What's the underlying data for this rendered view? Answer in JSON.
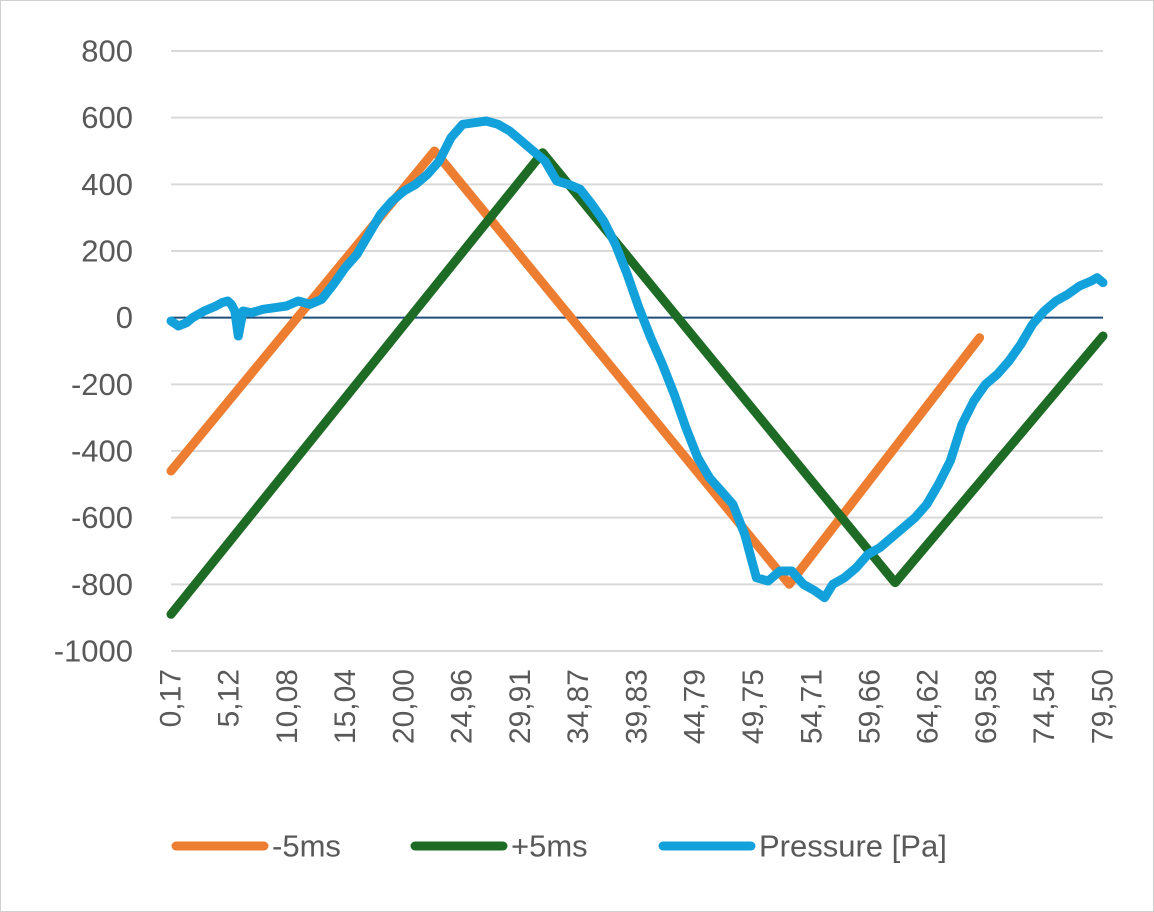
{
  "chart_data": {
    "type": "line",
    "title": "",
    "xlabel": "",
    "ylabel": "",
    "x_tick_labels": [
      "0,17",
      "5,12",
      "10,08",
      "15,04",
      "20,00",
      "24,96",
      "29,91",
      "34,87",
      "39,83",
      "44,79",
      "49,75",
      "54,71",
      "59,66",
      "64,62",
      "69,58",
      "74,54",
      "79,50"
    ],
    "x_ticks": [
      0.17,
      5.12,
      10.08,
      15.04,
      20.0,
      24.96,
      29.91,
      34.87,
      39.83,
      44.79,
      49.75,
      54.71,
      59.66,
      64.62,
      69.58,
      74.54,
      79.5
    ],
    "xlim": [
      0.17,
      79.5
    ],
    "ylim": [
      -1000,
      800
    ],
    "y_ticks": [
      800,
      600,
      400,
      200,
      0,
      -200,
      -400,
      -600,
      -800,
      -1000
    ],
    "y_tick_labels": [
      "800",
      "600",
      "400",
      "200",
      "0",
      "-200",
      "-400",
      "-600",
      "-800",
      "-1000"
    ],
    "grid": true,
    "legend_position": "bottom",
    "series": [
      {
        "name": "-5ms",
        "color": "#ed7d31",
        "points": [
          [
            0.17,
            -460
          ],
          [
            22.6,
            500
          ],
          [
            52.8,
            -800
          ],
          [
            69.0,
            -60
          ]
        ]
      },
      {
        "name": "+5ms",
        "color": "#1e6b25",
        "points": [
          [
            0.17,
            -890
          ],
          [
            31.8,
            495
          ],
          [
            61.8,
            -795
          ],
          [
            79.5,
            -55
          ]
        ]
      },
      {
        "name": "Pressure [Pa]",
        "color": "#13a1dc",
        "points": [
          [
            0.17,
            -10
          ],
          [
            0.8,
            -25
          ],
          [
            1.5,
            -15
          ],
          [
            2.0,
            0
          ],
          [
            3.0,
            20
          ],
          [
            4.0,
            35
          ],
          [
            4.5,
            45
          ],
          [
            5.0,
            50
          ],
          [
            5.3,
            40
          ],
          [
            5.6,
            20
          ],
          [
            5.9,
            -55
          ],
          [
            6.3,
            20
          ],
          [
            7.0,
            15
          ],
          [
            8.0,
            25
          ],
          [
            9.0,
            30
          ],
          [
            10.0,
            35
          ],
          [
            11.0,
            50
          ],
          [
            12.0,
            40
          ],
          [
            13.0,
            55
          ],
          [
            14.0,
            100
          ],
          [
            15.0,
            150
          ],
          [
            16.0,
            190
          ],
          [
            17.0,
            250
          ],
          [
            18.0,
            310
          ],
          [
            19.0,
            350
          ],
          [
            20.0,
            380
          ],
          [
            21.0,
            400
          ],
          [
            22.0,
            430
          ],
          [
            23.0,
            470
          ],
          [
            24.0,
            540
          ],
          [
            25.0,
            580
          ],
          [
            26.0,
            585
          ],
          [
            27.0,
            590
          ],
          [
            28.0,
            580
          ],
          [
            29.0,
            560
          ],
          [
            30.0,
            530
          ],
          [
            31.0,
            500
          ],
          [
            32.0,
            470
          ],
          [
            33.0,
            410
          ],
          [
            34.0,
            400
          ],
          [
            35.0,
            385
          ],
          [
            36.0,
            340
          ],
          [
            37.0,
            290
          ],
          [
            38.0,
            220
          ],
          [
            39.0,
            130
          ],
          [
            40.0,
            30
          ],
          [
            41.0,
            -60
          ],
          [
            42.0,
            -140
          ],
          [
            43.0,
            -230
          ],
          [
            44.0,
            -330
          ],
          [
            45.0,
            -420
          ],
          [
            46.0,
            -480
          ],
          [
            47.0,
            -520
          ],
          [
            48.0,
            -560
          ],
          [
            49.0,
            -650
          ],
          [
            50.0,
            -780
          ],
          [
            51.0,
            -790
          ],
          [
            52.0,
            -760
          ],
          [
            53.0,
            -760
          ],
          [
            54.0,
            -800
          ],
          [
            55.0,
            -820
          ],
          [
            55.8,
            -840
          ],
          [
            56.5,
            -800
          ],
          [
            57.5,
            -780
          ],
          [
            58.5,
            -750
          ],
          [
            59.5,
            -710
          ],
          [
            60.5,
            -690
          ],
          [
            61.5,
            -660
          ],
          [
            62.5,
            -630
          ],
          [
            63.5,
            -600
          ],
          [
            64.5,
            -560
          ],
          [
            65.5,
            -500
          ],
          [
            66.5,
            -430
          ],
          [
            67.5,
            -320
          ],
          [
            68.5,
            -250
          ],
          [
            69.5,
            -200
          ],
          [
            70.5,
            -170
          ],
          [
            71.5,
            -130
          ],
          [
            72.5,
            -80
          ],
          [
            73.5,
            -20
          ],
          [
            74.5,
            20
          ],
          [
            75.5,
            50
          ],
          [
            76.5,
            70
          ],
          [
            77.5,
            95
          ],
          [
            78.5,
            110
          ],
          [
            79.0,
            120
          ],
          [
            79.5,
            105
          ]
        ]
      }
    ]
  }
}
